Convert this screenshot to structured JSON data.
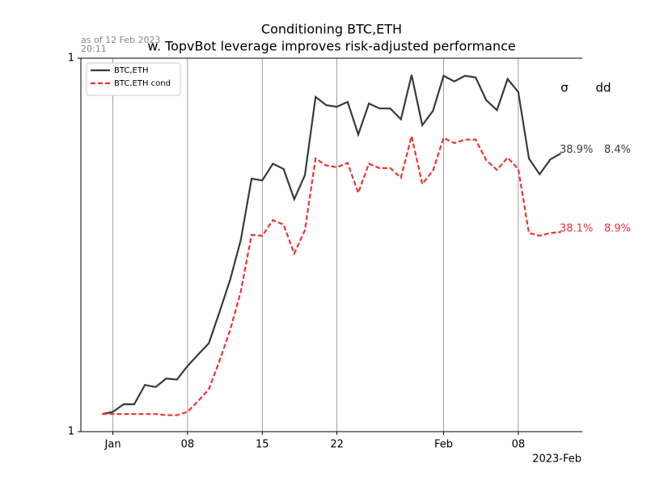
{
  "chart_data": {
    "type": "line",
    "title": [
      "Conditioning BTC,ETH",
      "w. TopvBot leverage improves risk-adjusted performance"
    ],
    "stamp": [
      "as of 12 Feb 2023",
      "20:11"
    ],
    "x_offset_label": "2023-Feb",
    "x": [
      "2022-12-31",
      "2023-01-01",
      "2023-01-02",
      "2023-01-03",
      "2023-01-04",
      "2023-01-05",
      "2023-01-06",
      "2023-01-07",
      "2023-01-08",
      "2023-01-09",
      "2023-01-10",
      "2023-01-11",
      "2023-01-12",
      "2023-01-13",
      "2023-01-14",
      "2023-01-15",
      "2023-01-16",
      "2023-01-17",
      "2023-01-18",
      "2023-01-19",
      "2023-01-20",
      "2023-01-21",
      "2023-01-22",
      "2023-01-23",
      "2023-01-24",
      "2023-01-25",
      "2023-01-26",
      "2023-01-27",
      "2023-01-28",
      "2023-01-29",
      "2023-01-30",
      "2023-01-31",
      "2023-02-01",
      "2023-02-02",
      "2023-02-03",
      "2023-02-04",
      "2023-02-05",
      "2023-02-06",
      "2023-02-07",
      "2023-02-08",
      "2023-02-09",
      "2023-02-10",
      "2023-02-11",
      "2023-02-12"
    ],
    "series": [
      {
        "name": "BTC,ETH",
        "color": "#3a3a3a",
        "dash": "solid",
        "values": [
          1.016,
          1.018,
          1.025,
          1.025,
          1.043,
          1.041,
          1.049,
          1.048,
          1.061,
          1.072,
          1.083,
          1.114,
          1.147,
          1.189,
          1.256,
          1.254,
          1.273,
          1.267,
          1.233,
          1.26,
          1.352,
          1.342,
          1.34,
          1.346,
          1.307,
          1.344,
          1.338,
          1.338,
          1.325,
          1.379,
          1.318,
          1.335,
          1.378,
          1.371,
          1.378,
          1.376,
          1.348,
          1.336,
          1.374,
          1.358,
          1.279,
          1.261,
          1.278,
          1.285
        ],
        "stats": [
          "38.9%",
          "8.4%"
        ]
      },
      {
        "name": "BTC,ETH cond",
        "color": "#ee3333",
        "dash": "dashed",
        "values": [
          1.016,
          1.016,
          1.016,
          1.016,
          1.016,
          1.016,
          1.015,
          1.015,
          1.018,
          1.028,
          1.039,
          1.066,
          1.096,
          1.135,
          1.194,
          1.193,
          1.21,
          1.205,
          1.174,
          1.199,
          1.279,
          1.271,
          1.269,
          1.274,
          1.24,
          1.273,
          1.268,
          1.268,
          1.257,
          1.305,
          1.25,
          1.265,
          1.303,
          1.297,
          1.301,
          1.301,
          1.277,
          1.266,
          1.28,
          1.267,
          1.196,
          1.193,
          1.196,
          1.197
        ],
        "stats": [
          "38.1%",
          "8.9%"
        ]
      }
    ],
    "stats_header": [
      "σ",
      "dd"
    ],
    "xlim": [
      "2022-12-29",
      "2023-02-14"
    ],
    "xticks": [
      {
        "value": "2023-01-01",
        "label": "Jan"
      },
      {
        "value": "2023-01-08",
        "label": "08"
      },
      {
        "value": "2023-01-15",
        "label": "15"
      },
      {
        "value": "2023-01-22",
        "label": "22"
      },
      {
        "value": "2023-02-01",
        "label": "Feb"
      },
      {
        "value": "2023-02-08",
        "label": "08"
      }
    ],
    "ylim": [
      1,
      1.4
    ],
    "yticks": [
      {
        "value": 1,
        "label": "1"
      },
      {
        "value": 1.4,
        "label": "1"
      }
    ],
    "log_y": true,
    "grid": "x",
    "legend": "upper-left"
  }
}
